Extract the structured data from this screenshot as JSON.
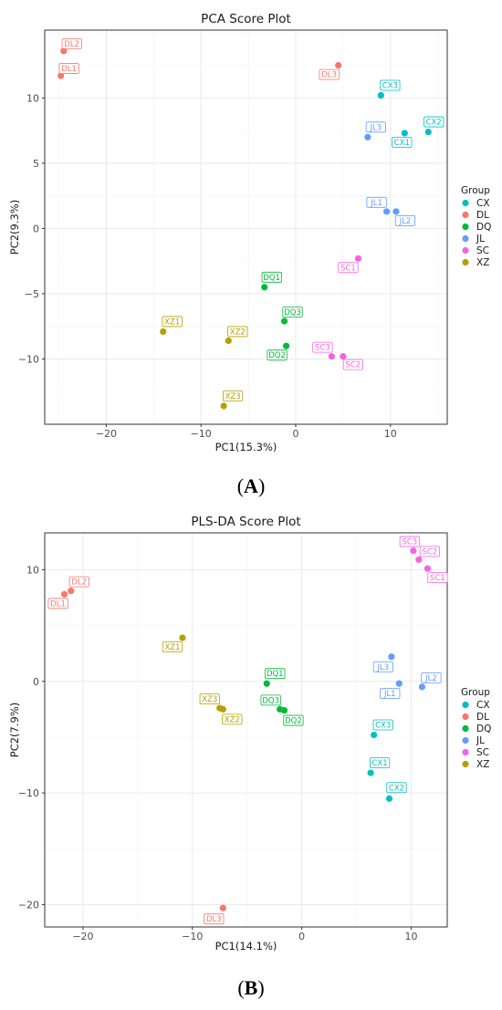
{
  "chart_data": [
    {
      "type": "scatter",
      "title": "PCA Score Plot",
      "xlabel": "PC1(15.3%)",
      "ylabel": "PC2(9.3%)",
      "xlim": [
        -26.5,
        16
      ],
      "ylim": [
        -15,
        15.2
      ],
      "xticks": [
        "−20",
        "−10",
        "0",
        "10"
      ],
      "yticks": [
        "10",
        "5",
        "0",
        "−5",
        "−10"
      ],
      "grid": true,
      "legend_title": "Group",
      "legend_position": "right",
      "panel_label": "(A)",
      "series": [
        {
          "name": "CX",
          "color": "#00BFC4",
          "points": [
            {
              "label": "CX1",
              "x": 11.5,
              "y": 7.3
            },
            {
              "label": "CX2",
              "x": 14.0,
              "y": 7.4
            },
            {
              "label": "CX3",
              "x": 9.0,
              "y": 10.2
            }
          ]
        },
        {
          "name": "DL",
          "color": "#F8766D",
          "points": [
            {
              "label": "DL1",
              "x": -24.8,
              "y": 11.7
            },
            {
              "label": "DL2",
              "x": -24.5,
              "y": 13.6
            },
            {
              "label": "DL3",
              "x": 4.5,
              "y": 12.5
            }
          ]
        },
        {
          "name": "DQ",
          "color": "#00BA38",
          "points": [
            {
              "label": "DQ1",
              "x": -3.3,
              "y": -4.5
            },
            {
              "label": "DQ2",
              "x": -1.0,
              "y": -9.0
            },
            {
              "label": "DQ3",
              "x": -1.2,
              "y": -7.1
            }
          ]
        },
        {
          "name": "JL",
          "color": "#619CFF",
          "points": [
            {
              "label": "JL1",
              "x": 9.6,
              "y": 1.3
            },
            {
              "label": "JL2",
              "x": 10.6,
              "y": 1.3
            },
            {
              "label": "JL3",
              "x": 7.6,
              "y": 7.0
            }
          ]
        },
        {
          "name": "SC",
          "color": "#F564E3",
          "points": [
            {
              "label": "SC1",
              "x": 6.6,
              "y": -2.3
            },
            {
              "label": "SC2",
              "x": 5.0,
              "y": -9.8
            },
            {
              "label": "SC3",
              "x": 3.8,
              "y": -9.8
            }
          ]
        },
        {
          "name": "XZ",
          "color": "#B79F00",
          "points": [
            {
              "label": "XZ1",
              "x": -14.0,
              "y": -7.9
            },
            {
              "label": "XZ2",
              "x": -7.1,
              "y": -8.6
            },
            {
              "label": "XZ3",
              "x": -7.6,
              "y": -13.6
            }
          ]
        }
      ]
    },
    {
      "type": "scatter",
      "title": "PLS-DA Score Plot",
      "xlabel": "PC1(14.1%)",
      "ylabel": "PC2(7.9%)",
      "xlim": [
        -23.5,
        13.3
      ],
      "ylim": [
        -22,
        13.3
      ],
      "xticks": [
        "−20",
        "−10",
        "0",
        "10"
      ],
      "yticks": [
        "10",
        "0",
        "−10",
        "−20"
      ],
      "grid": true,
      "legend_title": "Group",
      "legend_position": "right",
      "panel_label": "(B)",
      "series": [
        {
          "name": "CX",
          "color": "#00BFC4",
          "points": [
            {
              "label": "CX1",
              "x": 6.3,
              "y": -8.2
            },
            {
              "label": "CX2",
              "x": 8.0,
              "y": -10.5
            },
            {
              "label": "CX3",
              "x": 6.6,
              "y": -4.8
            }
          ]
        },
        {
          "name": "DL",
          "color": "#F8766D",
          "points": [
            {
              "label": "DL1",
              "x": -21.7,
              "y": 7.8
            },
            {
              "label": "DL2",
              "x": -21.1,
              "y": 8.1
            },
            {
              "label": "DL3",
              "x": -7.2,
              "y": -20.3
            }
          ]
        },
        {
          "name": "DQ",
          "color": "#00BA38",
          "points": [
            {
              "label": "DQ1",
              "x": -3.2,
              "y": -0.2
            },
            {
              "label": "DQ2",
              "x": -1.6,
              "y": -2.6
            },
            {
              "label": "DQ3",
              "x": -2.0,
              "y": -2.5
            }
          ]
        },
        {
          "name": "JL",
          "color": "#619CFF",
          "points": [
            {
              "label": "JL1",
              "x": 8.9,
              "y": -0.2
            },
            {
              "label": "JL2",
              "x": 11.0,
              "y": -0.5
            },
            {
              "label": "JL3",
              "x": 8.2,
              "y": 2.2
            }
          ]
        },
        {
          "name": "SC",
          "color": "#F564E3",
          "points": [
            {
              "label": "SC1",
              "x": 11.5,
              "y": 10.1
            },
            {
              "label": "SC2",
              "x": 10.7,
              "y": 10.9
            },
            {
              "label": "SC3",
              "x": 10.2,
              "y": 11.7
            }
          ]
        },
        {
          "name": "XZ",
          "color": "#B79F00",
          "points": [
            {
              "label": "XZ1",
              "x": -10.9,
              "y": 3.9
            },
            {
              "label": "XZ2",
              "x": -7.2,
              "y": -2.5
            },
            {
              "label": "XZ3",
              "x": -7.5,
              "y": -2.4
            }
          ]
        }
      ]
    }
  ]
}
